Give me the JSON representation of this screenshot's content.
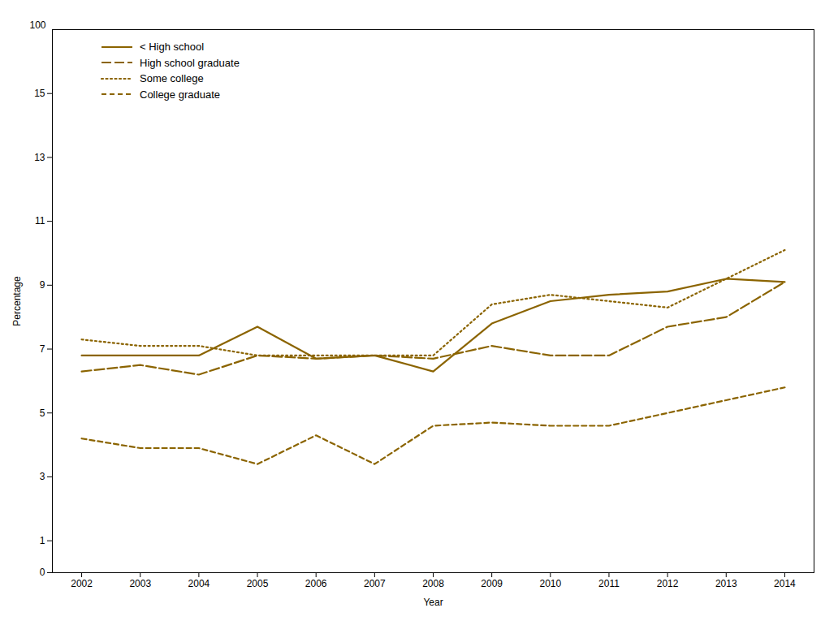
{
  "chart_data": {
    "type": "line",
    "x": [
      2002,
      2003,
      2004,
      2005,
      2006,
      2007,
      2008,
      2009,
      2010,
      2011,
      2012,
      2013,
      2014
    ],
    "series": [
      {
        "name": "< High school",
        "color": "#8B6400",
        "line_style": "solid",
        "values": [
          6.8,
          6.8,
          6.8,
          7.7,
          6.7,
          6.8,
          6.3,
          7.8,
          8.5,
          8.7,
          8.8,
          9.2,
          9.1
        ]
      },
      {
        "name": "High school graduate",
        "color": "#8B6400",
        "line_style": "long_dash",
        "values": [
          6.3,
          6.5,
          6.2,
          6.8,
          6.7,
          6.8,
          6.7,
          7.1,
          6.8,
          6.8,
          7.7,
          8.0,
          9.1
        ]
      },
      {
        "name": "Some college",
        "color": "#8B6400",
        "line_style": "dotted",
        "values": [
          7.3,
          7.1,
          7.1,
          6.8,
          6.8,
          6.8,
          6.8,
          8.4,
          8.7,
          8.5,
          8.3,
          9.2,
          10.1
        ]
      },
      {
        "name": "College graduate",
        "color": "#8B6400",
        "line_style": "short_dash",
        "values": [
          4.2,
          3.9,
          3.9,
          3.4,
          4.3,
          3.4,
          4.6,
          4.7,
          4.6,
          4.6,
          5.0,
          5.4,
          5.8
        ]
      }
    ],
    "xlabel": "Year",
    "ylabel": "Percentage",
    "xlim": [
      2001.5,
      2014.5
    ],
    "xticks": [
      2002,
      2003,
      2004,
      2005,
      2006,
      2007,
      2008,
      2009,
      2010,
      2011,
      2012,
      2013,
      2014
    ],
    "ylim": [
      0,
      17.0
    ],
    "yticks": [
      0,
      1,
      3,
      5,
      7,
      9,
      11,
      13,
      15
    ],
    "grid": false,
    "legend": "upper left",
    "annotations": [
      {
        "text": "100"
      }
    ]
  }
}
